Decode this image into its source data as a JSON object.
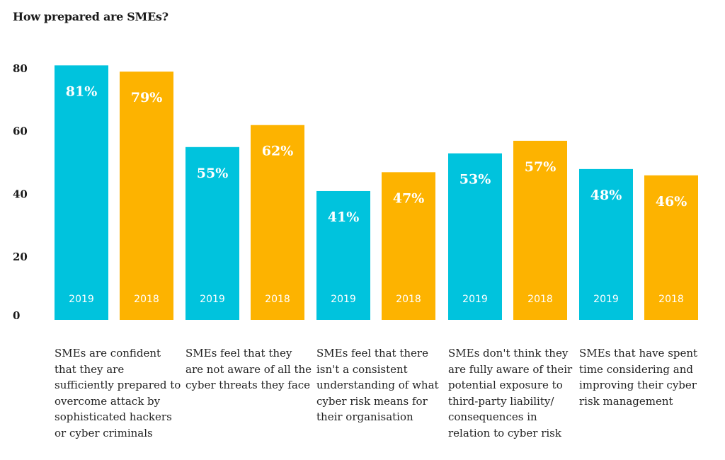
{
  "chart_data": {
    "type": "bar",
    "title": "How prepared are SMEs?",
    "xlabel": "",
    "ylabel": "",
    "ylim": [
      0,
      85
    ],
    "yticks": [
      0,
      20,
      40,
      60,
      80
    ],
    "grid": false,
    "categories": [
      "SMEs are confident that they are sufficiently prepared to overcome attack by sophisticated hackers or cyber criminals",
      "SMEs feel that they are not aware of all the cyber threats they face",
      "SMEs feel that there isn't a consistent understanding of what cyber risk means for their organisation",
      "SMEs don't think they are fully aware of their potential exposure to third-party liability/ consequences in relation to cyber risk",
      "SMEs that have spent time considering and improving their cyber risk management"
    ],
    "series": [
      {
        "name": "2019",
        "color": "#00C3DD",
        "values": [
          81,
          55,
          41,
          53,
          48
        ],
        "labels": [
          "81%",
          "55%",
          "41%",
          "53%",
          "48%"
        ]
      },
      {
        "name": "2018",
        "color": "#FDB300",
        "values": [
          79,
          62,
          47,
          57,
          46
        ],
        "labels": [
          "79%",
          "62%",
          "47%",
          "57%",
          "46%"
        ]
      }
    ]
  }
}
